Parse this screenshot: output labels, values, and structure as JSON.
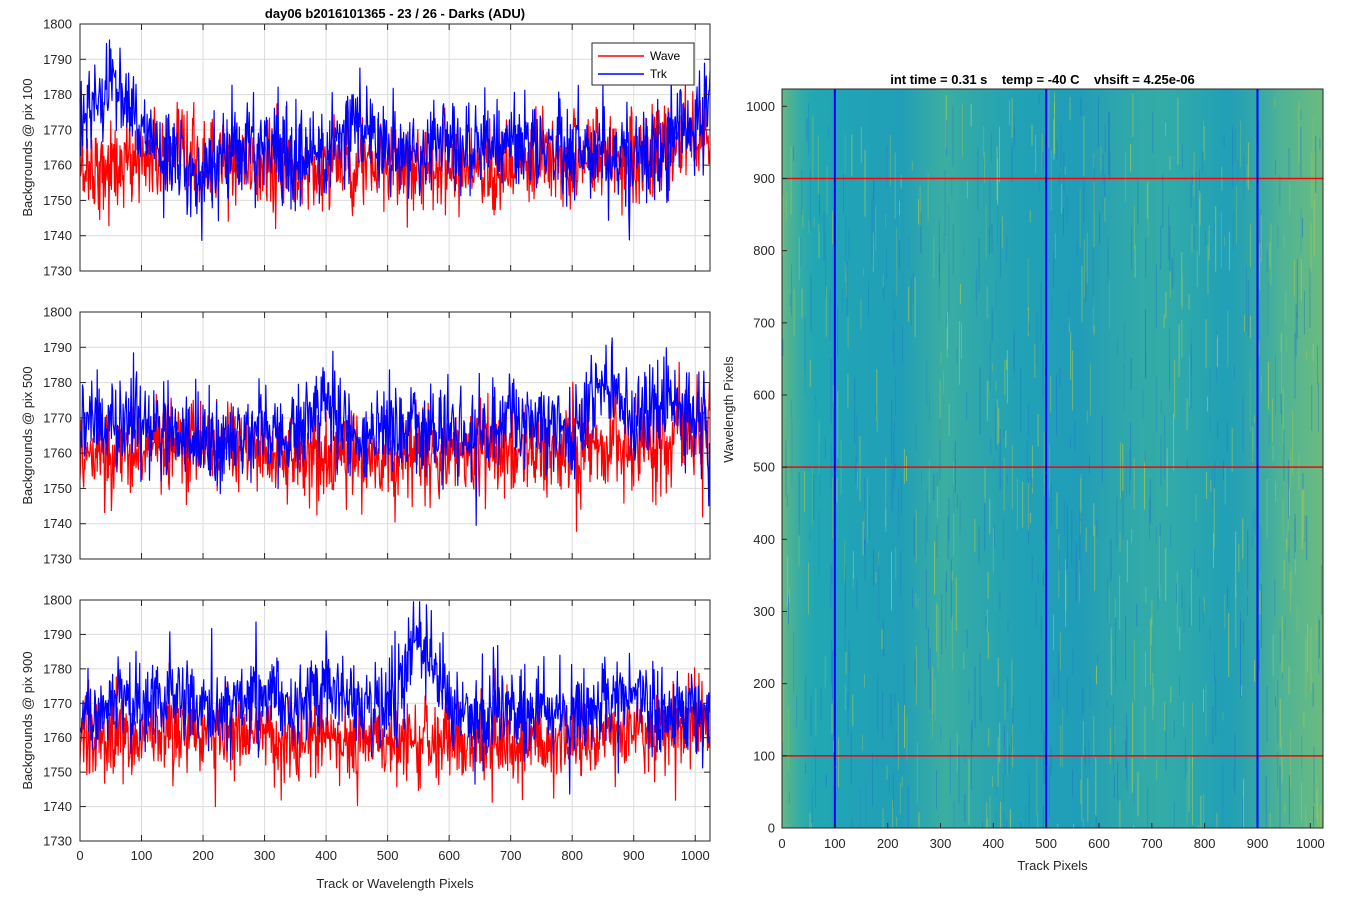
{
  "chart_data": [
    {
      "type": "line",
      "title": "day06 b2016101365 - 23 / 26 - Darks (ADU)",
      "xlabel": "",
      "ylabel": "Backgrounds @ pix 100",
      "xlim": [
        0,
        1024
      ],
      "ylim": [
        1730,
        1800
      ],
      "xticks": [
        0,
        100,
        200,
        300,
        400,
        500,
        600,
        700,
        800,
        900,
        1000
      ],
      "yticks": [
        1730,
        1740,
        1750,
        1760,
        1770,
        1780,
        1790,
        1800
      ],
      "grid": true,
      "legend": {
        "placement": "top-right",
        "entries": [
          "Wave",
          "Trk"
        ]
      },
      "series": [
        {
          "name": "Wave",
          "color": "#ff0000",
          "x": [
            0,
            50,
            100,
            150,
            200,
            250,
            300,
            350,
            400,
            450,
            500,
            550,
            600,
            650,
            700,
            750,
            800,
            850,
            900,
            950,
            1000,
            1024
          ],
          "values": [
            1760,
            1759,
            1762,
            1761,
            1760,
            1760,
            1761,
            1758,
            1760,
            1761,
            1759,
            1760,
            1761,
            1760,
            1759,
            1760,
            1762,
            1763,
            1763,
            1763,
            1770,
            1770
          ]
        },
        {
          "name": "Trk",
          "color": "#0000ff",
          "x": [
            0,
            50,
            100,
            150,
            200,
            250,
            300,
            350,
            400,
            450,
            500,
            550,
            600,
            650,
            700,
            750,
            800,
            850,
            900,
            950,
            1000,
            1024
          ],
          "values": [
            1773,
            1785,
            1771,
            1760,
            1758,
            1766,
            1765,
            1763,
            1762,
            1773,
            1763,
            1765,
            1766,
            1766,
            1767,
            1764,
            1766,
            1763,
            1762,
            1766,
            1775,
            1778
          ]
        }
      ]
    },
    {
      "type": "line",
      "title": "",
      "xlabel": "",
      "ylabel": "Backgrounds @ pix 500",
      "xlim": [
        0,
        1024
      ],
      "ylim": [
        1730,
        1800
      ],
      "xticks": [
        0,
        100,
        200,
        300,
        400,
        500,
        600,
        700,
        800,
        900,
        1000
      ],
      "yticks": [
        1730,
        1740,
        1750,
        1760,
        1770,
        1780,
        1790,
        1800
      ],
      "grid": true,
      "series": [
        {
          "name": "Wave",
          "color": "#ff0000",
          "x": [
            0,
            50,
            100,
            150,
            200,
            250,
            300,
            350,
            400,
            450,
            500,
            550,
            600,
            650,
            700,
            750,
            800,
            850,
            900,
            950,
            1000,
            1024
          ],
          "values": [
            1760,
            1759,
            1761,
            1762,
            1762,
            1762,
            1760,
            1759,
            1758,
            1760,
            1758,
            1759,
            1759,
            1758,
            1760,
            1761,
            1760,
            1762,
            1762,
            1762,
            1768,
            1768
          ]
        },
        {
          "name": "Trk",
          "color": "#0000ff",
          "x": [
            0,
            50,
            100,
            150,
            200,
            250,
            300,
            350,
            400,
            450,
            500,
            550,
            600,
            650,
            700,
            750,
            800,
            850,
            900,
            950,
            1000,
            1024
          ],
          "values": [
            1768,
            1770,
            1769,
            1765,
            1763,
            1764,
            1766,
            1764,
            1775,
            1765,
            1766,
            1765,
            1766,
            1764,
            1772,
            1768,
            1765,
            1782,
            1770,
            1775,
            1772,
            1765
          ]
        }
      ]
    },
    {
      "type": "line",
      "title": "",
      "xlabel": "Track or Wavelength Pixels",
      "ylabel": "Backgrounds @ pix 900",
      "xlim": [
        0,
        1024
      ],
      "ylim": [
        1730,
        1800
      ],
      "xticks": [
        0,
        100,
        200,
        300,
        400,
        500,
        600,
        700,
        800,
        900,
        1000
      ],
      "yticks": [
        1730,
        1740,
        1750,
        1760,
        1770,
        1780,
        1790,
        1800
      ],
      "grid": true,
      "series": [
        {
          "name": "Wave",
          "color": "#ff0000",
          "x": [
            0,
            50,
            100,
            150,
            200,
            250,
            300,
            350,
            400,
            450,
            500,
            550,
            600,
            650,
            700,
            750,
            800,
            850,
            900,
            950,
            1000,
            1024
          ],
          "values": [
            1759,
            1760,
            1761,
            1762,
            1762,
            1762,
            1760,
            1759,
            1760,
            1760,
            1758,
            1759,
            1759,
            1758,
            1760,
            1760,
            1760,
            1761,
            1761,
            1762,
            1764,
            1760
          ]
        },
        {
          "name": "Trk",
          "color": "#0000ff",
          "x": [
            0,
            50,
            100,
            150,
            200,
            250,
            300,
            350,
            400,
            450,
            500,
            550,
            600,
            650,
            700,
            750,
            800,
            850,
            900,
            950,
            1000,
            1024
          ],
          "values": [
            1768,
            1772,
            1770,
            1774,
            1768,
            1771,
            1775,
            1768,
            1776,
            1770,
            1768,
            1788,
            1768,
            1767,
            1768,
            1767,
            1766,
            1770,
            1772,
            1768,
            1770,
            1768
          ]
        }
      ]
    },
    {
      "type": "heatmap",
      "title": "int time = 0.31 s    temp = -40 C    vhsift = 4.25e-06",
      "xlabel": "Track Pixels",
      "ylabel": "Wavelength Pixels",
      "xlim": [
        0,
        1024
      ],
      "ylim": [
        0,
        1024
      ],
      "xticks": [
        0,
        100,
        200,
        300,
        400,
        500,
        600,
        700,
        800,
        900,
        1000
      ],
      "yticks": [
        0,
        100,
        200,
        300,
        400,
        500,
        600,
        700,
        800,
        900,
        1000
      ],
      "colormap": {
        "low": "#1f78c8",
        "mid": "#21a7b4",
        "high": "#b5cf4c"
      },
      "vertical_markers": {
        "x": [
          100,
          500,
          900
        ],
        "color": "#0000ff"
      },
      "horizontal_markers": {
        "y": [
          100,
          500,
          900
        ],
        "color": "#ff0000"
      }
    }
  ]
}
